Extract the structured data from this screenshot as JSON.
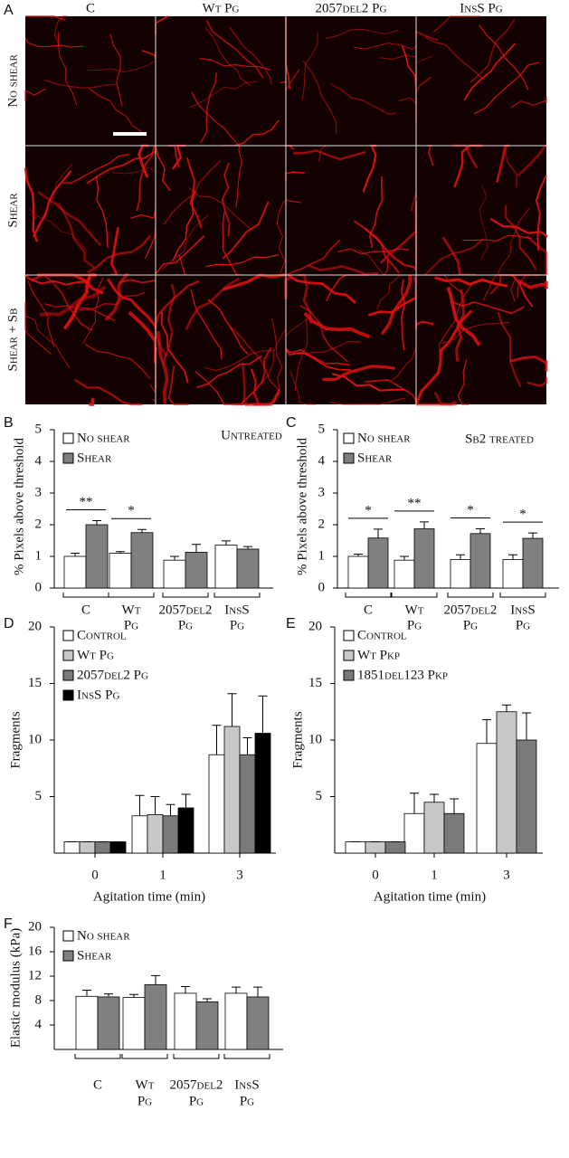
{
  "image_panel": {
    "label": "A",
    "columns": [
      "C",
      "Wt Pg",
      "2057del2 Pg",
      "InsS Pg"
    ],
    "rows": [
      "No shear",
      "Shear",
      "Shear + Sb"
    ]
  },
  "chart_data": [
    {
      "type": "bar",
      "panel_label": "B",
      "title": "Untreated",
      "ylabel": "% Pixels above threshold",
      "categories": [
        [
          "C"
        ],
        [
          "Wt",
          "Pg"
        ],
        [
          "2057del2",
          "Pg"
        ],
        [
          "InsS",
          "Pg"
        ]
      ],
      "series": [
        {
          "name": "No shear",
          "color": "#ffffff",
          "values": [
            1.0,
            1.1,
            0.88,
            1.36
          ],
          "errors": [
            0.1,
            0.05,
            0.12,
            0.13
          ]
        },
        {
          "name": "Shear",
          "color": "#808080",
          "values": [
            2.0,
            1.75,
            1.13,
            1.23
          ],
          "errors": [
            0.13,
            0.1,
            0.25,
            0.08
          ]
        }
      ],
      "annotations": [
        "**",
        "*"
      ],
      "ylim": [
        0,
        5
      ],
      "yticks": [
        0,
        1,
        2,
        3,
        4,
        5
      ]
    },
    {
      "type": "bar",
      "panel_label": "C",
      "title": "Sb2 treated",
      "ylabel": "% Pixels above threshold",
      "categories": [
        [
          "C"
        ],
        [
          "Wt",
          "Pg"
        ],
        [
          "2057del2",
          "Pg"
        ],
        [
          "InsS",
          "Pg"
        ]
      ],
      "series": [
        {
          "name": "No shear",
          "color": "#ffffff",
          "values": [
            1.0,
            0.88,
            0.9,
            0.9
          ],
          "errors": [
            0.07,
            0.12,
            0.15,
            0.15
          ]
        },
        {
          "name": "Shear",
          "color": "#808080",
          "values": [
            1.58,
            1.87,
            1.72,
            1.57
          ],
          "errors": [
            0.28,
            0.22,
            0.15,
            0.17
          ]
        }
      ],
      "annotations": [
        "*",
        "**",
        "*",
        "*"
      ],
      "ylim": [
        0,
        5
      ],
      "yticks": [
        0,
        1,
        2,
        3,
        4,
        5
      ]
    },
    {
      "type": "bar",
      "panel_label": "D",
      "xlabel": "Agitation time (min)",
      "ylabel": "Fragments",
      "categories": [
        [
          "0"
        ],
        [
          "1"
        ],
        [
          "3"
        ]
      ],
      "series": [
        {
          "name": "Control",
          "color": "#ffffff",
          "values": [
            1,
            3.3,
            8.7
          ],
          "errors": [
            0,
            1.8,
            2.6
          ]
        },
        {
          "name": "Wt Pg",
          "color": "#c8c8c8",
          "values": [
            1,
            3.4,
            11.2
          ],
          "errors": [
            0,
            1.6,
            2.9
          ]
        },
        {
          "name": "2057del2 Pg",
          "color": "#7a7a7a",
          "values": [
            1,
            3.3,
            8.7
          ],
          "errors": [
            0,
            1.0,
            1.5
          ]
        },
        {
          "name": "InsS Pg",
          "color": "#000000",
          "values": [
            1,
            4.0,
            10.6
          ],
          "errors": [
            0,
            1.2,
            3.3
          ]
        }
      ],
      "ylim": [
        0,
        20
      ],
      "yticks": [
        5,
        10,
        15,
        20
      ]
    },
    {
      "type": "bar",
      "panel_label": "E",
      "xlabel": "Agitation time (min)",
      "ylabel": "Fragments",
      "categories": [
        [
          "0"
        ],
        [
          "1"
        ],
        [
          "3"
        ]
      ],
      "series": [
        {
          "name": "Control",
          "color": "#ffffff",
          "values": [
            1,
            3.5,
            9.7
          ],
          "errors": [
            0,
            1.8,
            2.1
          ]
        },
        {
          "name": "Wt Pkp",
          "color": "#c8c8c8",
          "values": [
            1,
            4.5,
            12.5
          ],
          "errors": [
            0,
            0.7,
            0.6
          ]
        },
        {
          "name": "1851del123 Pkp",
          "color": "#7a7a7a",
          "values": [
            1,
            3.5,
            10.0
          ],
          "errors": [
            0,
            1.3,
            2.4
          ]
        }
      ],
      "ylim": [
        0,
        20
      ],
      "yticks": [
        5,
        10,
        15,
        20
      ]
    },
    {
      "type": "bar",
      "panel_label": "F",
      "ylabel": "Elastic modulus (kPa)",
      "categories": [
        [
          "C"
        ],
        [
          "Wt",
          "Pg"
        ],
        [
          "2057del2",
          "Pg"
        ],
        [
          "InsS",
          "Pg"
        ]
      ],
      "series": [
        {
          "name": "No shear",
          "color": "#ffffff",
          "values": [
            8.7,
            8.5,
            9.2,
            9.2
          ],
          "errors": [
            1.0,
            0.5,
            1.1,
            1.0
          ]
        },
        {
          "name": "Shear",
          "color": "#808080",
          "values": [
            8.6,
            10.6,
            7.8,
            8.6
          ],
          "errors": [
            0.5,
            1.5,
            0.5,
            1.6
          ]
        }
      ],
      "ylim": [
        0,
        20
      ],
      "yticks": [
        4,
        8,
        12,
        16,
        20
      ]
    }
  ]
}
